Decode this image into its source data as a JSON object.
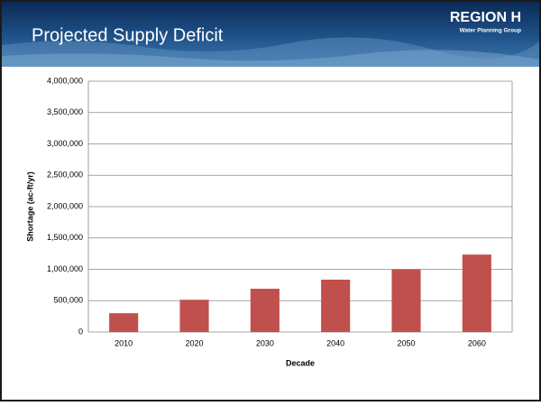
{
  "chart_data": {
    "type": "bar",
    "title": "Projected Supply Deficit",
    "x_label": "Decade",
    "y_label": "Shortage (ac-ft/yr)",
    "categories": [
      "2010",
      "2020",
      "2030",
      "2040",
      "2050",
      "2060"
    ],
    "values": [
      300000,
      515000,
      690000,
      835000,
      1000000,
      1235000
    ],
    "color": "#c0504d",
    "ylim": [
      0,
      4000000
    ],
    "yticks": [
      0,
      {
        "value": 500000,
        "label": "500,000"
      },
      {
        "value": 1000000,
        "label": "1,000,000"
      },
      {
        "value": 1500000,
        "label": "1,500,000"
      },
      {
        "value": 2000000,
        "label": "2,000,000"
      },
      {
        "value": 2500000,
        "label": "2,500,000"
      },
      {
        "value": 3000000,
        "label": "3,000,000"
      },
      {
        "value": 3500000,
        "label": "3,500,000"
      },
      {
        "value": 4000000,
        "label": "4,000,000"
      }
    ],
    "grid": true
  },
  "logo": {
    "title": "REGION H",
    "subtitle": "Water Planning Group"
  }
}
